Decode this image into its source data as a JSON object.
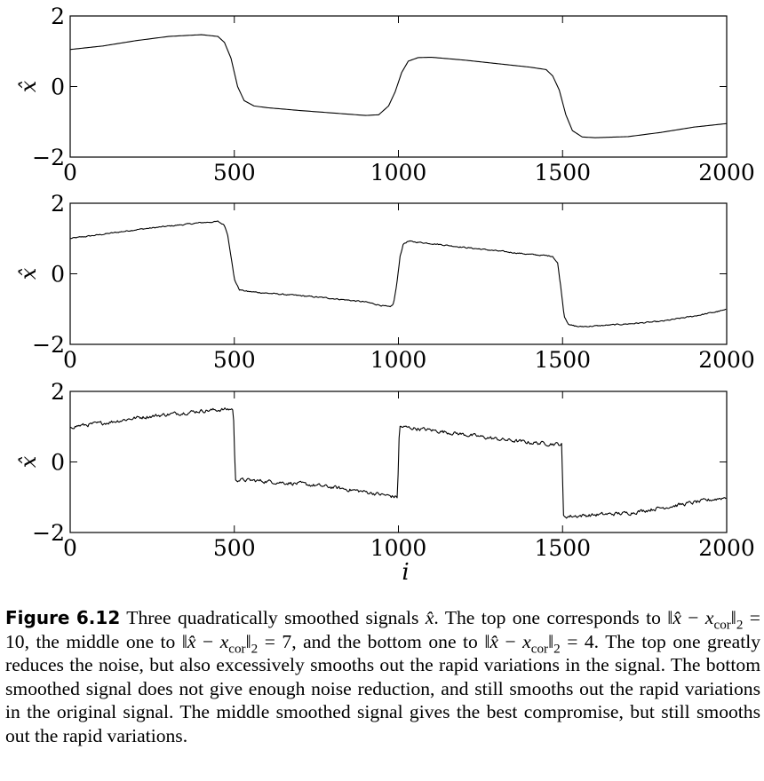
{
  "chart_data": [
    {
      "type": "line",
      "ylabel": "x̂",
      "xlabel": "",
      "xlim": [
        0,
        2000
      ],
      "ylim": [
        -2,
        2
      ],
      "xticks": [
        "0",
        "500",
        "1000",
        "1500",
        "2000"
      ],
      "yticks": [
        "2",
        "0",
        "−2"
      ],
      "noise": 0,
      "series": [
        {
          "x": [
            0,
            100,
            200,
            300,
            400,
            450,
            470,
            490,
            510,
            530,
            560,
            600,
            700,
            800,
            900,
            940,
            970,
            990,
            1010,
            1030,
            1060,
            1100,
            1200,
            1300,
            1400,
            1450,
            1470,
            1490,
            1510,
            1530,
            1560,
            1600,
            1700,
            1800,
            1900,
            2000
          ],
          "y": [
            1.05,
            1.15,
            1.3,
            1.42,
            1.47,
            1.42,
            1.25,
            0.8,
            0.0,
            -0.4,
            -0.55,
            -0.6,
            -0.68,
            -0.75,
            -0.82,
            -0.8,
            -0.55,
            -0.15,
            0.4,
            0.72,
            0.82,
            0.83,
            0.75,
            0.65,
            0.55,
            0.48,
            0.3,
            -0.1,
            -0.8,
            -1.25,
            -1.43,
            -1.45,
            -1.42,
            -1.3,
            -1.15,
            -1.05
          ]
        }
      ]
    },
    {
      "type": "line",
      "ylabel": "x̂",
      "xlabel": "",
      "xlim": [
        0,
        2000
      ],
      "ylim": [
        -2,
        2
      ],
      "xticks": [
        "0",
        "500",
        "1000",
        "1500",
        "2000"
      ],
      "yticks": [
        "2",
        "0",
        "−2"
      ],
      "noise": 0.015,
      "series": [
        {
          "x": [
            0,
            100,
            200,
            300,
            400,
            450,
            470,
            480,
            490,
            500,
            515,
            540,
            600,
            700,
            800,
            900,
            975,
            985,
            995,
            1005,
            1015,
            1030,
            1100,
            1200,
            1300,
            1400,
            1470,
            1485,
            1495,
            1505,
            1520,
            1550,
            1600,
            1700,
            1800,
            1900,
            2000
          ],
          "y": [
            1.0,
            1.12,
            1.25,
            1.35,
            1.45,
            1.48,
            1.38,
            1.1,
            0.5,
            -0.15,
            -0.45,
            -0.5,
            -0.55,
            -0.62,
            -0.7,
            -0.8,
            -0.95,
            -0.85,
            -0.3,
            0.5,
            0.85,
            0.92,
            0.86,
            0.75,
            0.65,
            0.55,
            0.5,
            0.3,
            -0.4,
            -1.2,
            -1.45,
            -1.5,
            -1.48,
            -1.42,
            -1.35,
            -1.2,
            -1.02
          ]
        }
      ]
    },
    {
      "type": "line",
      "ylabel": "x̂",
      "xlabel": "i",
      "xlim": [
        0,
        2000
      ],
      "ylim": [
        -2,
        2
      ],
      "xticks": [
        "0",
        "500",
        "1000",
        "1500",
        "2000"
      ],
      "yticks": [
        "2",
        "0",
        "−2"
      ],
      "noise": 0.045,
      "series": [
        {
          "x": [
            0,
            100,
            200,
            300,
            400,
            497,
            500,
            503,
            600,
            700,
            800,
            900,
            997,
            1000,
            1003,
            1100,
            1200,
            1300,
            1400,
            1497,
            1500,
            1503,
            1600,
            1700,
            1800,
            1900,
            2000
          ],
          "y": [
            1.0,
            1.1,
            1.25,
            1.35,
            1.45,
            1.5,
            0.5,
            -0.5,
            -0.55,
            -0.62,
            -0.72,
            -0.85,
            -1.0,
            0.0,
            1.0,
            0.9,
            0.78,
            0.65,
            0.55,
            0.5,
            -0.5,
            -1.55,
            -1.5,
            -1.45,
            -1.3,
            -1.15,
            -1.0
          ]
        }
      ]
    }
  ],
  "caption": {
    "figure_label": "Figure",
    "figure_number": "6.12",
    "segments": [
      {
        "t": " Three quadratically smoothed signals "
      },
      {
        "t": "x̂",
        "m": true
      },
      {
        "t": ". The top one corresponds to ‖"
      },
      {
        "t": "x̂",
        "m": true
      },
      {
        "t": " − "
      },
      {
        "t": "x",
        "m": true
      },
      {
        "t": "cor",
        "sub": true
      },
      {
        "t": "‖"
      },
      {
        "t": "2",
        "sub": true
      },
      {
        "t": " = 10, the middle one to ‖"
      },
      {
        "t": "x̂",
        "m": true
      },
      {
        "t": " − "
      },
      {
        "t": "x",
        "m": true
      },
      {
        "t": "cor",
        "sub": true
      },
      {
        "t": "‖"
      },
      {
        "t": "2",
        "sub": true
      },
      {
        "t": " = 7, and the bottom one to ‖"
      },
      {
        "t": "x̂",
        "m": true
      },
      {
        "t": " − "
      },
      {
        "t": "x",
        "m": true
      },
      {
        "t": "cor",
        "sub": true
      },
      {
        "t": "‖"
      },
      {
        "t": "2",
        "sub": true
      },
      {
        "t": " = 4. The top one greatly reduces the noise, but also excessively smooths out the rapid variations in the signal. The bottom smoothed signal does not give enough noise reduction, and still smooths out the rapid variations in the original signal. The middle smoothed signal gives the best compromise, but still smooths out the rapid variations."
      }
    ]
  }
}
